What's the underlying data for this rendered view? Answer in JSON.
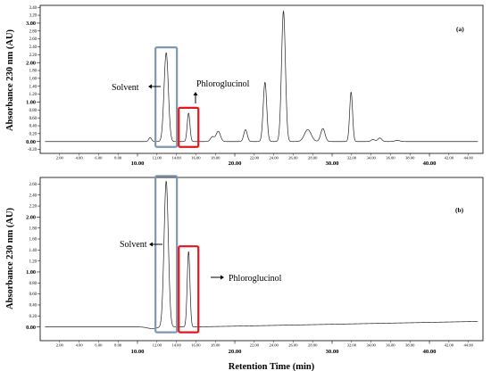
{
  "chart_data": {
    "type": "line",
    "xlabel": "Retention Time (min)",
    "ylabel": "Absorbance 230 nm (AU)",
    "colors": {
      "trace": "#222222",
      "solvent_box": "#7e98b3",
      "phloroglucinol_box": "#e8141b",
      "frame": "#000000"
    },
    "x_ticks": {
      "minor": [
        "2.00",
        "4.00",
        "6.00",
        "8.00",
        "12.00",
        "14.00",
        "16.00",
        "18.00",
        "22.00",
        "24.00",
        "26.00",
        "28.00",
        "32.00",
        "34.00",
        "36.00",
        "38.00",
        "42.00",
        "44.00"
      ],
      "major": [
        "10.00",
        "20.00",
        "30.00",
        "40.00"
      ]
    },
    "xlim": [
      0,
      45.5
    ],
    "panels": [
      {
        "label": "(a)",
        "ylim": [
          -0.3,
          3.45
        ],
        "y_ticks": {
          "minor": [
            {
              "v": -0.2,
              "t": "-0.20"
            },
            {
              "v": 0.2,
              "t": "0.20"
            },
            {
              "v": 0.4,
              "t": "0.40"
            },
            {
              "v": 0.6,
              "t": "0.60"
            },
            {
              "v": 0.8,
              "t": "0.80"
            },
            {
              "v": 1.2,
              "t": "1.20"
            },
            {
              "v": 1.4,
              "t": "1.40"
            },
            {
              "v": 1.6,
              "t": "1.60"
            },
            {
              "v": 1.8,
              "t": "1.80"
            },
            {
              "v": 2.2,
              "t": "2.20"
            },
            {
              "v": 2.4,
              "t": "2.40"
            },
            {
              "v": 2.6,
              "t": "2.60"
            },
            {
              "v": 2.8,
              "t": "2.80"
            },
            {
              "v": 3.2,
              "t": "3.20"
            },
            {
              "v": 3.4,
              "t": "3.40"
            }
          ],
          "major": [
            {
              "v": 0,
              "t": "0.00"
            },
            {
              "v": 1,
              "t": "1.00"
            },
            {
              "v": 2,
              "t": "2.00"
            },
            {
              "v": 3,
              "t": "3.00"
            }
          ]
        },
        "annotations": {
          "solvent": "Solvent",
          "phloroglucinol": "Phloroglucinol"
        },
        "baseline": 0.0,
        "peaks": [
          {
            "x": 11.3,
            "h": 0.1,
            "w": 0.15
          },
          {
            "x": 12.95,
            "h": 2.25,
            "w": 0.22
          },
          {
            "x": 15.25,
            "h": 0.72,
            "w": 0.14
          },
          {
            "x": 17.7,
            "h": 0.12,
            "w": 0.2
          },
          {
            "x": 18.3,
            "h": 0.26,
            "w": 0.22
          },
          {
            "x": 21.1,
            "h": 0.3,
            "w": 0.18
          },
          {
            "x": 23.1,
            "h": 1.5,
            "w": 0.18
          },
          {
            "x": 25.0,
            "h": 3.3,
            "w": 0.2
          },
          {
            "x": 27.5,
            "h": 0.3,
            "w": 0.35
          },
          {
            "x": 29.05,
            "h": 0.33,
            "w": 0.22
          },
          {
            "x": 31.95,
            "h": 1.25,
            "w": 0.15
          },
          {
            "x": 34.2,
            "h": 0.05,
            "w": 0.2
          },
          {
            "x": 34.9,
            "h": 0.09,
            "w": 0.2
          },
          {
            "x": 36.7,
            "h": 0.03,
            "w": 0.25
          }
        ]
      },
      {
        "label": "(b)",
        "ylim": [
          -0.25,
          2.72
        ],
        "y_ticks": {
          "minor": [
            {
              "v": 0.2,
              "t": "0.20"
            },
            {
              "v": 0.4,
              "t": "0.40"
            },
            {
              "v": 0.6,
              "t": "0.60"
            },
            {
              "v": 0.8,
              "t": "0.80"
            },
            {
              "v": 1.2,
              "t": "1.20"
            },
            {
              "v": 1.4,
              "t": "1.40"
            },
            {
              "v": 1.6,
              "t": "1.60"
            },
            {
              "v": 1.8,
              "t": "1.80"
            },
            {
              "v": 2.2,
              "t": "2.20"
            },
            {
              "v": 2.4,
              "t": "2.40"
            },
            {
              "v": 2.6,
              "t": "2.60"
            }
          ],
          "major": [
            {
              "v": 0,
              "t": "0.00"
            },
            {
              "v": 1,
              "t": "1.00"
            },
            {
              "v": 2,
              "t": "2.00"
            }
          ]
        },
        "annotations": {
          "solvent": "Solvent",
          "phloroglucinol": "Phloroglucinol"
        },
        "baseline": 0.0,
        "drift_end": 0.1,
        "peaks": [
          {
            "x": 11.5,
            "h": -0.03,
            "w": 0.5
          },
          {
            "x": 12.95,
            "h": 2.65,
            "w": 0.22
          },
          {
            "x": 15.25,
            "h": 1.37,
            "w": 0.14
          }
        ]
      }
    ]
  }
}
